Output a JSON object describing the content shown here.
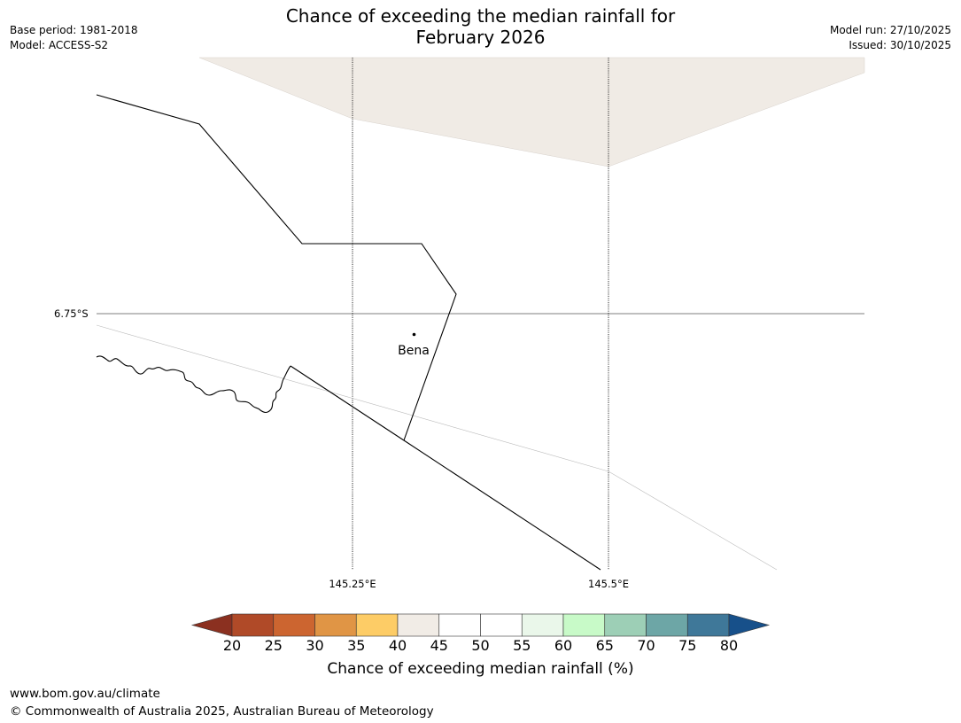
{
  "header": {
    "title_line1": "Chance of exceeding the median rainfall for",
    "title_line2": "February 2026",
    "base_period": "Base period: 1981-2018",
    "model": "Model: ACCESS-S2",
    "model_run": "Model run: 27/10/2025",
    "issued": "Issued: 30/10/2025"
  },
  "map": {
    "lat_label": "6.75°S",
    "lon_labels": [
      "145.25°E",
      "145.5°E"
    ],
    "town": "Bena",
    "colors": {
      "land_shade": "#f0ebe5",
      "boundary": "#000000",
      "gridline": "#000000"
    }
  },
  "colorbar": {
    "title": "Chance of exceeding median rainfall (%)",
    "tick_labels": [
      "20",
      "25",
      "30",
      "35",
      "40",
      "45",
      "50",
      "55",
      "60",
      "65",
      "70",
      "75",
      "80"
    ],
    "low_extend_color": "#8b3020",
    "high_extend_color": "#17508a",
    "bin_colors": [
      "#b04a28",
      "#cc6530",
      "#e09545",
      "#fdcc66",
      "#f1ece6",
      "#ffffff",
      "#ffffff",
      "#eaf7ea",
      "#c8fac8",
      "#9dcfb6",
      "#6da6a6",
      "#3f7899"
    ]
  },
  "footer": {
    "url": "www.bom.gov.au/climate",
    "copyright": "© Commonwealth of Australia 2025, Australian Bureau of Meteorology"
  }
}
